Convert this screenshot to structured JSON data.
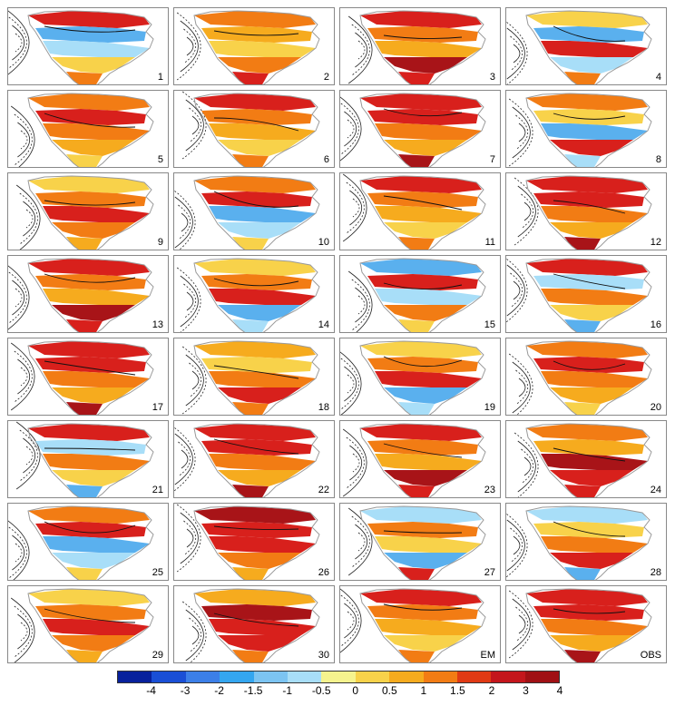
{
  "panels": [
    {
      "label": "1",
      "pattern": "cool"
    },
    {
      "label": "2",
      "pattern": "warm"
    },
    {
      "label": "3",
      "pattern": "hot"
    },
    {
      "label": "4",
      "pattern": "mixed"
    },
    {
      "label": "5",
      "pattern": "warm"
    },
    {
      "label": "6",
      "pattern": "warm"
    },
    {
      "label": "7",
      "pattern": "hot"
    },
    {
      "label": "8",
      "pattern": "mixed"
    },
    {
      "label": "9",
      "pattern": "warm"
    },
    {
      "label": "10",
      "pattern": "cool"
    },
    {
      "label": "11",
      "pattern": "warm"
    },
    {
      "label": "12",
      "pattern": "hot"
    },
    {
      "label": "13",
      "pattern": "hot"
    },
    {
      "label": "14",
      "pattern": "cool"
    },
    {
      "label": "15",
      "pattern": "mixed"
    },
    {
      "label": "16",
      "pattern": "mixed"
    },
    {
      "label": "17",
      "pattern": "hot"
    },
    {
      "label": "18",
      "pattern": "warm"
    },
    {
      "label": "19",
      "pattern": "cool"
    },
    {
      "label": "20",
      "pattern": "warm"
    },
    {
      "label": "21",
      "pattern": "mixed"
    },
    {
      "label": "22",
      "pattern": "hot"
    },
    {
      "label": "23",
      "pattern": "hot"
    },
    {
      "label": "24",
      "pattern": "hot"
    },
    {
      "label": "25",
      "pattern": "cool"
    },
    {
      "label": "26",
      "pattern": "hot"
    },
    {
      "label": "27",
      "pattern": "mixed"
    },
    {
      "label": "28",
      "pattern": "cool"
    },
    {
      "label": "29",
      "pattern": "warm"
    },
    {
      "label": "30",
      "pattern": "hot"
    },
    {
      "label": "EM",
      "pattern": "warm"
    },
    {
      "label": "OBS",
      "pattern": "hot"
    }
  ],
  "colorbar": {
    "colors": [
      "#08219c",
      "#1a4fd6",
      "#3c7fe8",
      "#34a6f0",
      "#7cc4f2",
      "#a8def8",
      "#f6f38e",
      "#f8d24a",
      "#f6ab1e",
      "#f27c14",
      "#e03a14",
      "#c4161c",
      "#a01014"
    ],
    "tick_labels": [
      "-4",
      "-3",
      "-2",
      "-1.5",
      "-1",
      "-0.5",
      "0",
      "0.5",
      "1",
      "1.5",
      "2",
      "3",
      "4"
    ]
  },
  "map_colors": {
    "deep_red": "#a81418",
    "red": "#d8201c",
    "orange": "#f27c14",
    "light_orange": "#f6ab1e",
    "yellow": "#f8d24a",
    "light_blue": "#a8def8",
    "blue": "#5ab0ee",
    "gray_coast": "#9a9a9a"
  }
}
